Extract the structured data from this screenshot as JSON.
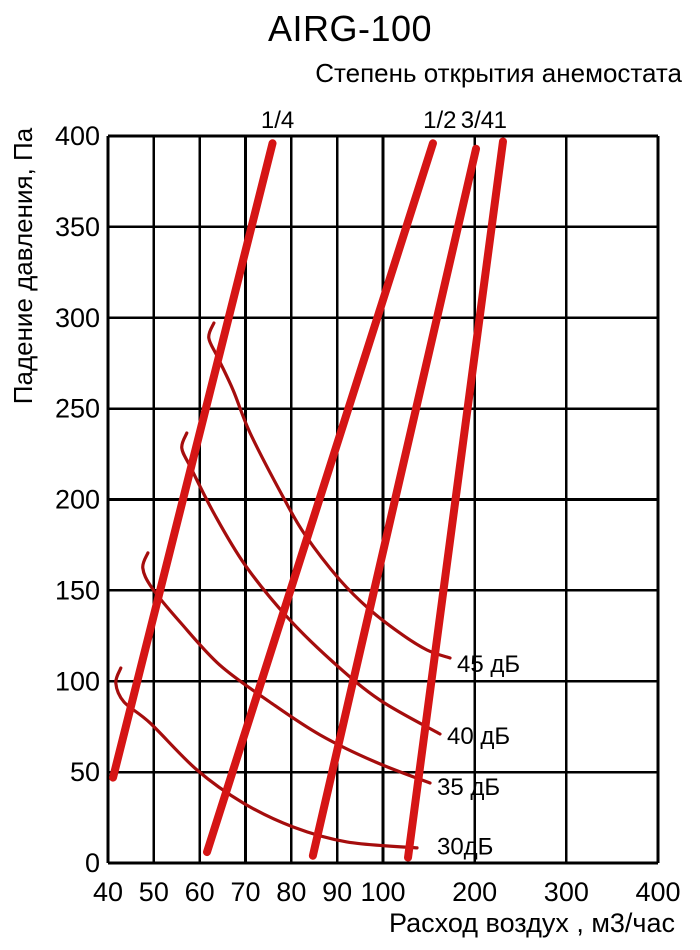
{
  "page": {
    "background": "#ffffff"
  },
  "chart_data": {
    "type": "line",
    "title": "AIRG-100",
    "subtitle": "Степень открытия анемостата",
    "xlabel": "Расход воздух , м3/час",
    "ylabel": "Падение давления, Па",
    "x_axis": {
      "ticks": [
        40,
        50,
        60,
        70,
        80,
        90,
        100,
        200,
        300,
        400
      ],
      "min": 40,
      "max": 400,
      "scale": "piecewise-linear: 40-100 expanded, 100-400 compressed",
      "unit": "м3/час"
    },
    "y_axis": {
      "ticks": [
        0,
        50,
        100,
        150,
        200,
        250,
        300,
        350,
        400
      ],
      "min": 0,
      "max": 400,
      "unit": "Па"
    },
    "grid": true,
    "legend_position": "inline-labels",
    "colors": {
      "opening_line": "#d51515",
      "noise_curve": "#a50d0d",
      "grid": "#000000",
      "text": "#000000"
    },
    "opening_series": [
      {
        "label": "1/4",
        "label_flow": 77,
        "points": [
          [
            41.1,
            47
          ],
          [
            75.9,
            396
          ]
        ]
      },
      {
        "label": "1/2",
        "label_flow": 162,
        "points": [
          [
            61.6,
            6
          ],
          [
            154.5,
            396
          ]
        ]
      },
      {
        "label": "3/4",
        "label_flow": 203,
        "points": [
          [
            84.7,
            4
          ],
          [
            201.5,
            393
          ]
        ]
      },
      {
        "label": "1",
        "label_flow": 228,
        "points": [
          [
            127.3,
            3
          ],
          [
            230.9,
            397
          ]
        ]
      }
    ],
    "noise_series": [
      {
        "label": "30дБ",
        "label_anchor": [
          158.9,
          4.7
        ],
        "points": [
          [
            42.8,
            107.3
          ],
          [
            41.7,
            99.0
          ],
          [
            43.5,
            88.6
          ],
          [
            49.2,
            77.0
          ],
          [
            59.4,
            51.2
          ],
          [
            69.5,
            33.0
          ],
          [
            80.4,
            19.8
          ],
          [
            92.1,
            11.6
          ],
          [
            137.1,
            8.3
          ]
        ]
      },
      {
        "label": "35 дБ",
        "label_anchor": [
          158.9,
          37.4
        ],
        "points": [
          [
            48.7,
            170.6
          ],
          [
            47.6,
            162.3
          ],
          [
            49.6,
            151.3
          ],
          [
            55.7,
            132.6
          ],
          [
            64.4,
            108.9
          ],
          [
            75.3,
            88.6
          ],
          [
            86.3,
            70.4
          ],
          [
            98.3,
            55.6
          ],
          [
            151.3,
            44.0
          ]
        ]
      },
      {
        "label": "40 дБ",
        "label_anchor": [
          169.8,
          65.5
        ],
        "points": [
          [
            57.2,
            236.6
          ],
          [
            56.1,
            228.3
          ],
          [
            58.1,
            217.3
          ],
          [
            63.3,
            191.5
          ],
          [
            69.9,
            164.0
          ],
          [
            79.1,
            135.3
          ],
          [
            89.1,
            110.6
          ],
          [
            99.3,
            89.7
          ],
          [
            162.2,
            71.0
          ]
        ]
      },
      {
        "label": "45 дБ",
        "label_anchor": [
          180.7,
          105.1
        ],
        "points": [
          [
            63.1,
            297.1
          ],
          [
            62.0,
            288.9
          ],
          [
            64.0,
            277.9
          ],
          [
            67.3,
            260.2
          ],
          [
            71.0,
            236.6
          ],
          [
            78.2,
            201.4
          ],
          [
            83.0,
            180.5
          ],
          [
            90.6,
            155.7
          ],
          [
            97.2,
            139.2
          ],
          [
            118.5,
            126.5
          ],
          [
            148.0,
            117.2
          ],
          [
            173.1,
            112.8
          ]
        ]
      }
    ]
  }
}
